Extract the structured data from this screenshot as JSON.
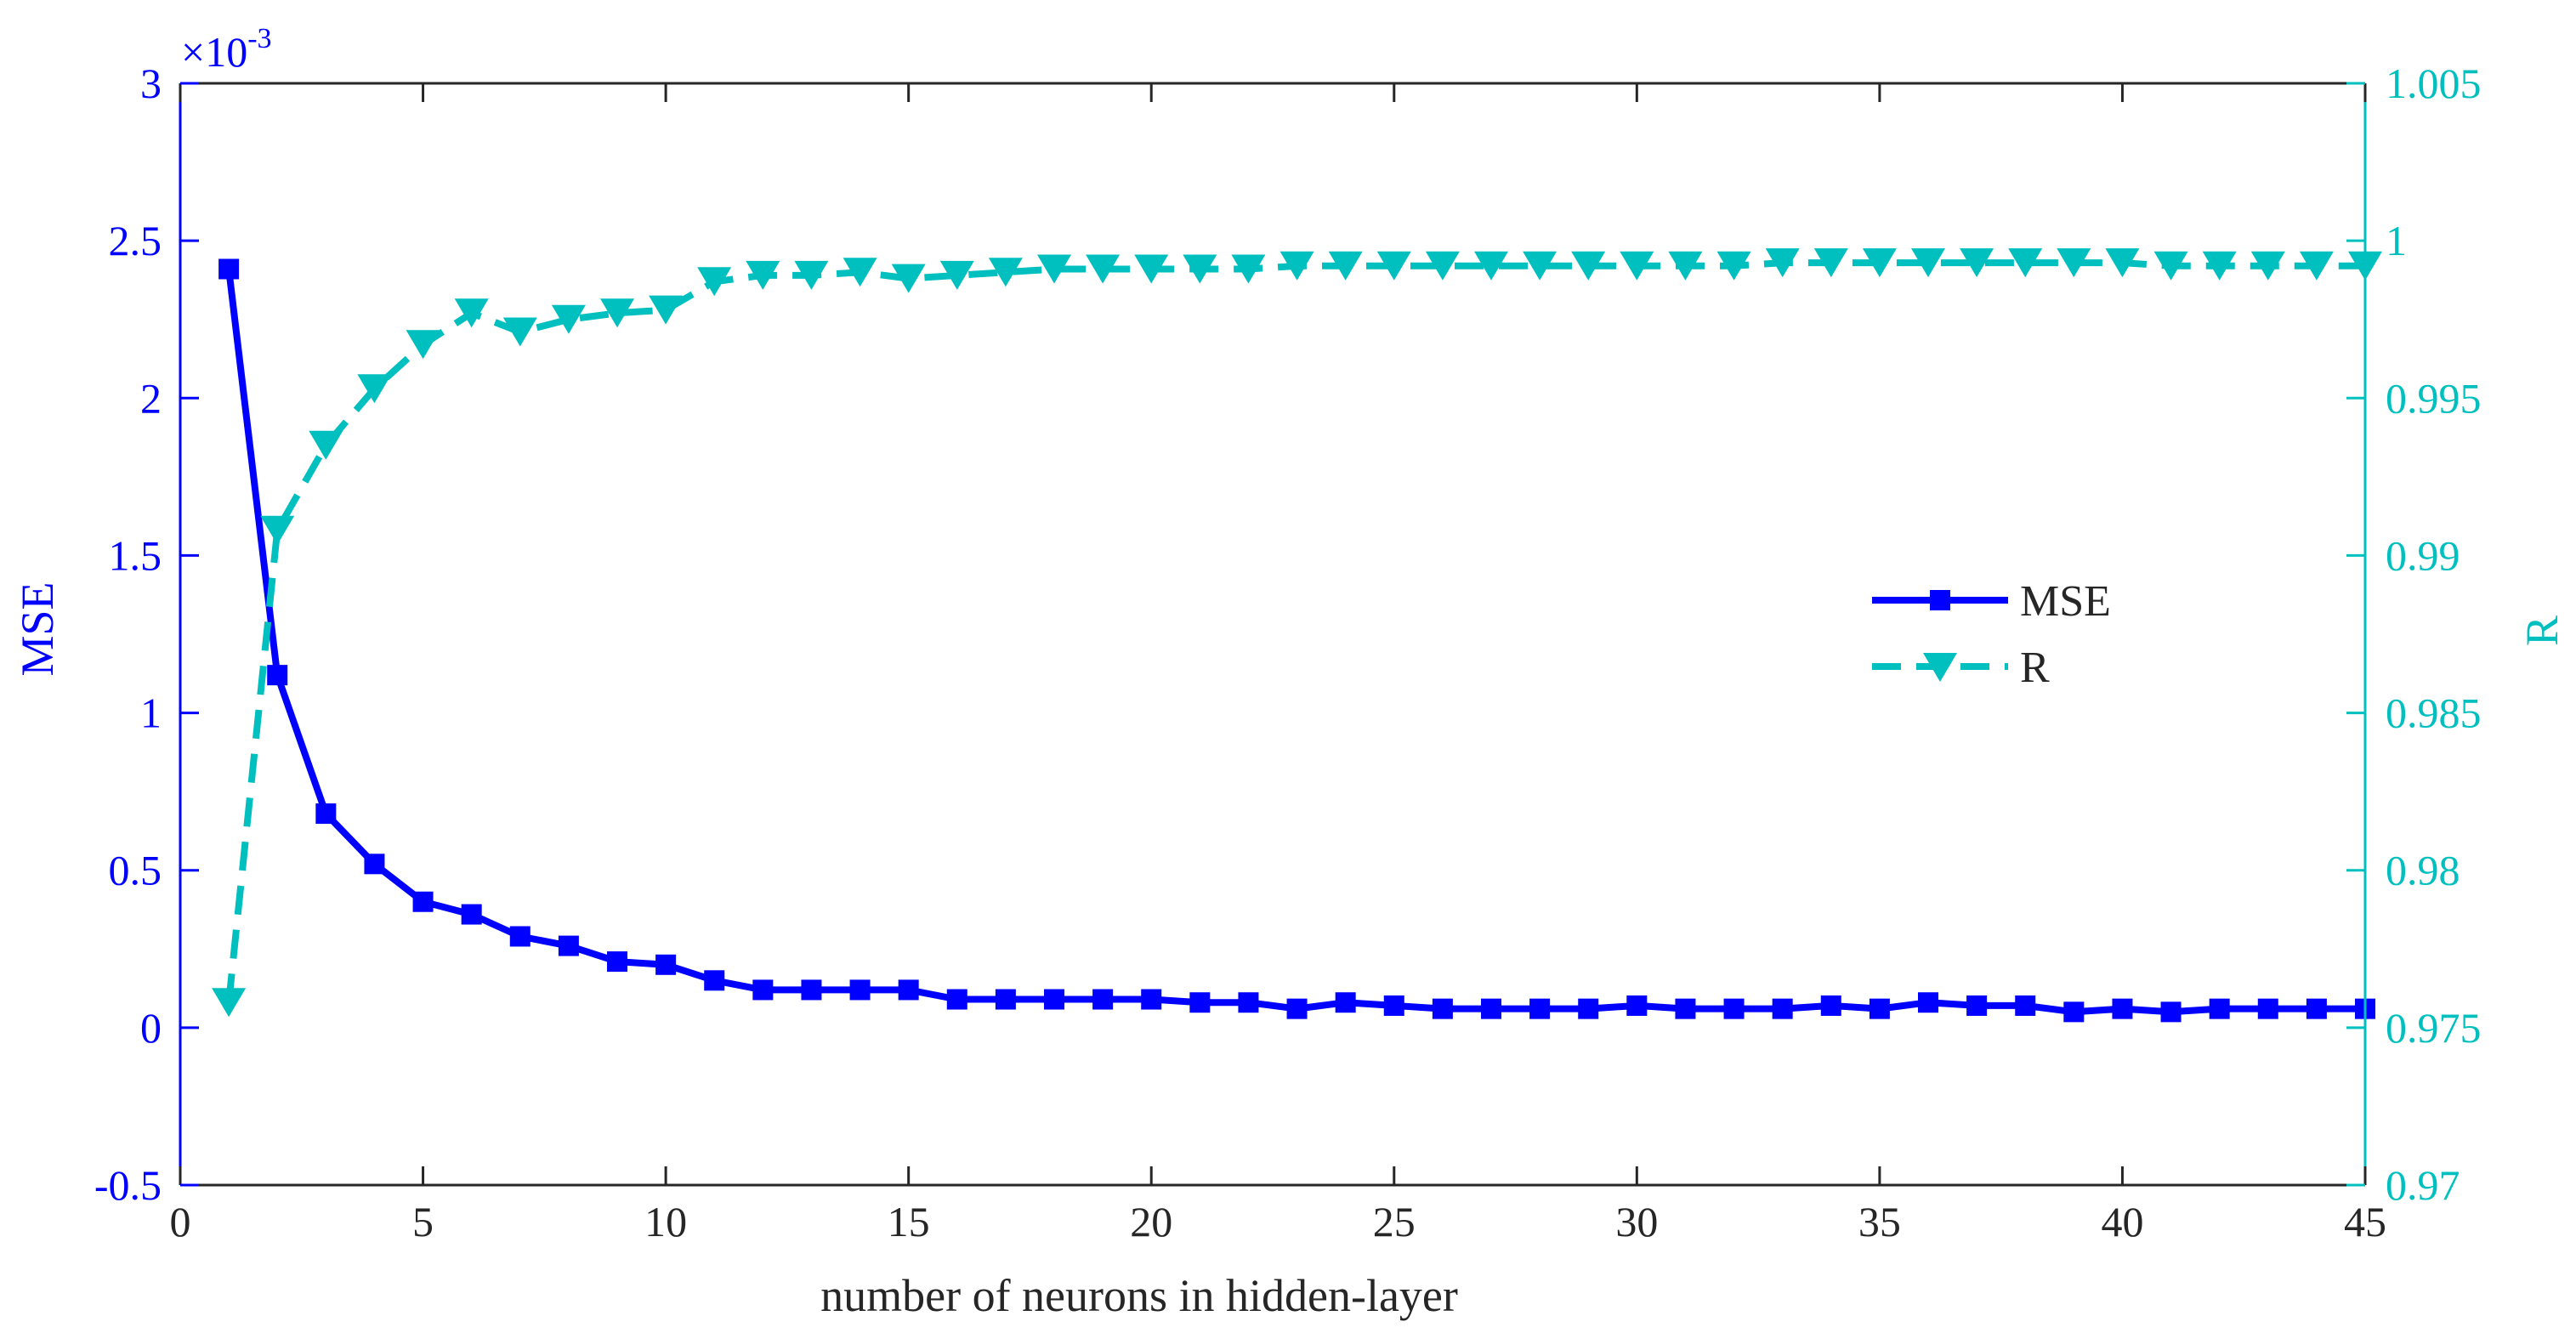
{
  "colors": {
    "mse": "#0000ff",
    "r": "#00bfbf",
    "axis_black": "#262626",
    "background": "#ffffff"
  },
  "chart_data": {
    "type": "line",
    "xlabel": "number of neurons in hidden-layer",
    "ylabel_left": "MSE",
    "ylabel_right": "R",
    "left_exponent_label": "×10",
    "left_exponent_power": "-3",
    "xlim": [
      0,
      45
    ],
    "ylim_left": [
      -0.5,
      3
    ],
    "ylim_right": [
      0.97,
      1.005
    ],
    "x_ticks": [
      0,
      5,
      10,
      15,
      20,
      25,
      30,
      35,
      40,
      45
    ],
    "x_tick_labels": [
      "0",
      "5",
      "10",
      "15",
      "20",
      "25",
      "30",
      "35",
      "40",
      "45"
    ],
    "y_left_ticks": [
      -0.5,
      0,
      0.5,
      1,
      1.5,
      2,
      2.5,
      3
    ],
    "y_left_tick_labels": [
      "-0.5",
      "0",
      "0.5",
      "1",
      "1.5",
      "2",
      "2.5",
      "3"
    ],
    "y_right_ticks": [
      0.97,
      0.975,
      0.98,
      0.985,
      0.99,
      0.995,
      1,
      1.005
    ],
    "y_right_tick_labels": [
      "0.97",
      "0.975",
      "0.98",
      "0.985",
      "0.99",
      "0.995",
      "1",
      "1.005"
    ],
    "grid": false,
    "legend": {
      "position": "center-right",
      "entries": [
        "MSE",
        "R"
      ]
    },
    "x": [
      1,
      2,
      3,
      4,
      5,
      6,
      7,
      8,
      9,
      10,
      11,
      12,
      13,
      14,
      15,
      16,
      17,
      18,
      19,
      20,
      21,
      22,
      23,
      24,
      25,
      26,
      27,
      28,
      29,
      30,
      31,
      32,
      33,
      34,
      35,
      36,
      37,
      38,
      39,
      40,
      41,
      42,
      43,
      44,
      45
    ],
    "series": [
      {
        "name": "MSE",
        "axis": "left",
        "line": "solid",
        "marker": "square",
        "values": [
          2.41,
          1.12,
          0.68,
          0.52,
          0.4,
          0.36,
          0.29,
          0.26,
          0.21,
          0.2,
          0.15,
          0.12,
          0.12,
          0.12,
          0.12,
          0.09,
          0.09,
          0.09,
          0.09,
          0.09,
          0.08,
          0.08,
          0.06,
          0.08,
          0.07,
          0.06,
          0.06,
          0.06,
          0.06,
          0.07,
          0.06,
          0.06,
          0.06,
          0.07,
          0.06,
          0.08,
          0.07,
          0.07,
          0.05,
          0.06,
          0.05,
          0.06,
          0.06,
          0.06,
          0.06
        ]
      },
      {
        "name": "R",
        "axis": "right",
        "line": "dashed",
        "marker": "triangle-down",
        "values": [
          0.9758,
          0.9908,
          0.9935,
          0.9953,
          0.9967,
          0.9977,
          0.9971,
          0.9975,
          0.9977,
          0.9978,
          0.9987,
          0.9989,
          0.9989,
          0.999,
          0.9988,
          0.9989,
          0.999,
          0.9991,
          0.9991,
          0.9991,
          0.9991,
          0.9991,
          0.9992,
          0.9992,
          0.9992,
          0.9992,
          0.9992,
          0.9992,
          0.9992,
          0.9992,
          0.9992,
          0.9992,
          0.9993,
          0.9993,
          0.9993,
          0.9993,
          0.9993,
          0.9993,
          0.9993,
          0.9993,
          0.9992,
          0.9992,
          0.9992,
          0.9992,
          0.9992
        ]
      }
    ]
  }
}
